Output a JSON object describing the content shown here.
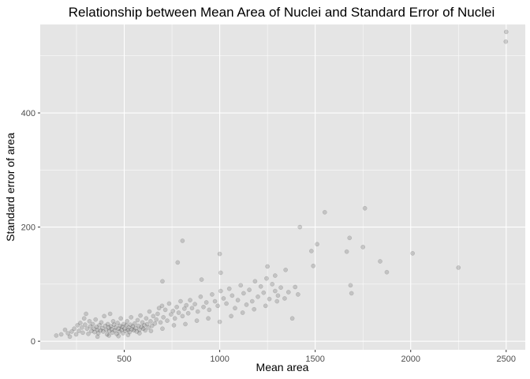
{
  "chart_data": {
    "type": "scatter",
    "title": "Relationship between Mean Area of Nuclei and Standard Error of Nuclei",
    "xlabel": "Mean area",
    "ylabel": "Standard error of area",
    "xlim": [
      60,
      2600
    ],
    "ylim": [
      -15,
      555
    ],
    "x_ticks": [
      500,
      1000,
      1500,
      2000,
      2500
    ],
    "x_tick_labels": [
      "500",
      "1000",
      "1500",
      "2000",
      "2500"
    ],
    "y_ticks": [
      0,
      200,
      400
    ],
    "y_tick_labels": [
      "0",
      "200",
      "400"
    ],
    "grid": true,
    "legend": "none",
    "colors": {
      "panel_background": "#e5e5e5",
      "point": "#000000",
      "point_opacity": 0.15
    },
    "points": [
      [
        144,
        10
      ],
      [
        170,
        12
      ],
      [
        190,
        20
      ],
      [
        205,
        14
      ],
      [
        215,
        8
      ],
      [
        225,
        17
      ],
      [
        238,
        22
      ],
      [
        248,
        12
      ],
      [
        255,
        28
      ],
      [
        262,
        18
      ],
      [
        270,
        32
      ],
      [
        278,
        24
      ],
      [
        283,
        15
      ],
      [
        290,
        40
      ],
      [
        295,
        29
      ],
      [
        300,
        48
      ],
      [
        305,
        22
      ],
      [
        312,
        13
      ],
      [
        318,
        35
      ],
      [
        322,
        26
      ],
      [
        328,
        18
      ],
      [
        335,
        30
      ],
      [
        340,
        22
      ],
      [
        345,
        16
      ],
      [
        350,
        38
      ],
      [
        355,
        25
      ],
      [
        360,
        20
      ],
      [
        364,
        14
      ],
      [
        370,
        28
      ],
      [
        375,
        19
      ],
      [
        380,
        33
      ],
      [
        385,
        23
      ],
      [
        390,
        17
      ],
      [
        395,
        44
      ],
      [
        400,
        27
      ],
      [
        405,
        20
      ],
      [
        410,
        12
      ],
      [
        414,
        30
      ],
      [
        418,
        24
      ],
      [
        422,
        18
      ],
      [
        426,
        48
      ],
      [
        430,
        26
      ],
      [
        434,
        21
      ],
      [
        438,
        15
      ],
      [
        442,
        35
      ],
      [
        446,
        29
      ],
      [
        450,
        19
      ],
      [
        455,
        24
      ],
      [
        460,
        13
      ],
      [
        465,
        32
      ],
      [
        470,
        22
      ],
      [
        474,
        17
      ],
      [
        478,
        27
      ],
      [
        482,
        40
      ],
      [
        486,
        20
      ],
      [
        490,
        25
      ],
      [
        494,
        14
      ],
      [
        498,
        30
      ],
      [
        502,
        22
      ],
      [
        506,
        18
      ],
      [
        510,
        28
      ],
      [
        515,
        35
      ],
      [
        520,
        20
      ],
      [
        524,
        24
      ],
      [
        528,
        16
      ],
      [
        532,
        29
      ],
      [
        536,
        42
      ],
      [
        540,
        21
      ],
      [
        545,
        26
      ],
      [
        550,
        19
      ],
      [
        555,
        31
      ],
      [
        560,
        23
      ],
      [
        565,
        17
      ],
      [
        570,
        37
      ],
      [
        575,
        27
      ],
      [
        580,
        20
      ],
      [
        585,
        45
      ],
      [
        590,
        25
      ],
      [
        595,
        33
      ],
      [
        600,
        22
      ],
      [
        605,
        28
      ],
      [
        610,
        19
      ],
      [
        615,
        40
      ],
      [
        620,
        30
      ],
      [
        626,
        24
      ],
      [
        632,
        52
      ],
      [
        638,
        35
      ],
      [
        645,
        27
      ],
      [
        652,
        44
      ],
      [
        660,
        31
      ],
      [
        668,
        38
      ],
      [
        675,
        48
      ],
      [
        682,
        58
      ],
      [
        690,
        33
      ],
      [
        698,
        62
      ],
      [
        705,
        42
      ],
      [
        715,
        55
      ],
      [
        725,
        36
      ],
      [
        735,
        66
      ],
      [
        745,
        47
      ],
      [
        755,
        53
      ],
      [
        765,
        40
      ],
      [
        775,
        60
      ],
      [
        785,
        50
      ],
      [
        795,
        70
      ],
      [
        805,
        44
      ],
      [
        815,
        57
      ],
      [
        825,
        63
      ],
      [
        835,
        49
      ],
      [
        845,
        72
      ],
      [
        855,
        58
      ],
      [
        870,
        65
      ],
      [
        885,
        52
      ],
      [
        900,
        78
      ],
      [
        915,
        60
      ],
      [
        930,
        68
      ],
      [
        945,
        55
      ],
      [
        960,
        82
      ],
      [
        975,
        70
      ],
      [
        990,
        62
      ],
      [
        1005,
        88
      ],
      [
        1020,
        75
      ],
      [
        1035,
        66
      ],
      [
        1050,
        92
      ],
      [
        1065,
        80
      ],
      [
        1080,
        58
      ],
      [
        1095,
        72
      ],
      [
        1110,
        98
      ],
      [
        1125,
        84
      ],
      [
        1140,
        64
      ],
      [
        1155,
        90
      ],
      [
        1170,
        70
      ],
      [
        1185,
        105
      ],
      [
        1200,
        78
      ],
      [
        1215,
        96
      ],
      [
        1230,
        85
      ],
      [
        1245,
        110
      ],
      [
        1260,
        74
      ],
      [
        1275,
        100
      ],
      [
        1290,
        88
      ],
      [
        1305,
        80
      ],
      [
        1320,
        94
      ],
      [
        1340,
        75
      ],
      [
        1360,
        86
      ],
      [
        1380,
        40
      ],
      [
        1395,
        95
      ],
      [
        1410,
        82
      ],
      [
        700,
        105
      ],
      [
        780,
        138
      ],
      [
        805,
        176
      ],
      [
        905,
        108
      ],
      [
        1000,
        153
      ],
      [
        1005,
        120
      ],
      [
        1250,
        131
      ],
      [
        1290,
        115
      ],
      [
        1345,
        125
      ],
      [
        1420,
        200
      ],
      [
        1480,
        158
      ],
      [
        1490,
        132
      ],
      [
        1510,
        170
      ],
      [
        1550,
        226
      ],
      [
        1665,
        157
      ],
      [
        1680,
        181
      ],
      [
        1685,
        98
      ],
      [
        1690,
        84
      ],
      [
        1750,
        165
      ],
      [
        1760,
        233
      ],
      [
        1840,
        140
      ],
      [
        1875,
        121
      ],
      [
        2010,
        154
      ],
      [
        2250,
        129
      ],
      [
        2498,
        525
      ],
      [
        2500,
        542
      ],
      [
        360,
        8
      ],
      [
        420,
        10
      ],
      [
        470,
        9
      ],
      [
        520,
        11
      ],
      [
        580,
        14
      ],
      [
        640,
        18
      ],
      [
        700,
        22
      ],
      [
        760,
        28
      ],
      [
        820,
        30
      ],
      [
        880,
        36
      ],
      [
        940,
        40
      ],
      [
        1000,
        34
      ],
      [
        1060,
        44
      ],
      [
        1120,
        50
      ],
      [
        1180,
        56
      ],
      [
        1240,
        62
      ],
      [
        1300,
        70
      ]
    ]
  }
}
